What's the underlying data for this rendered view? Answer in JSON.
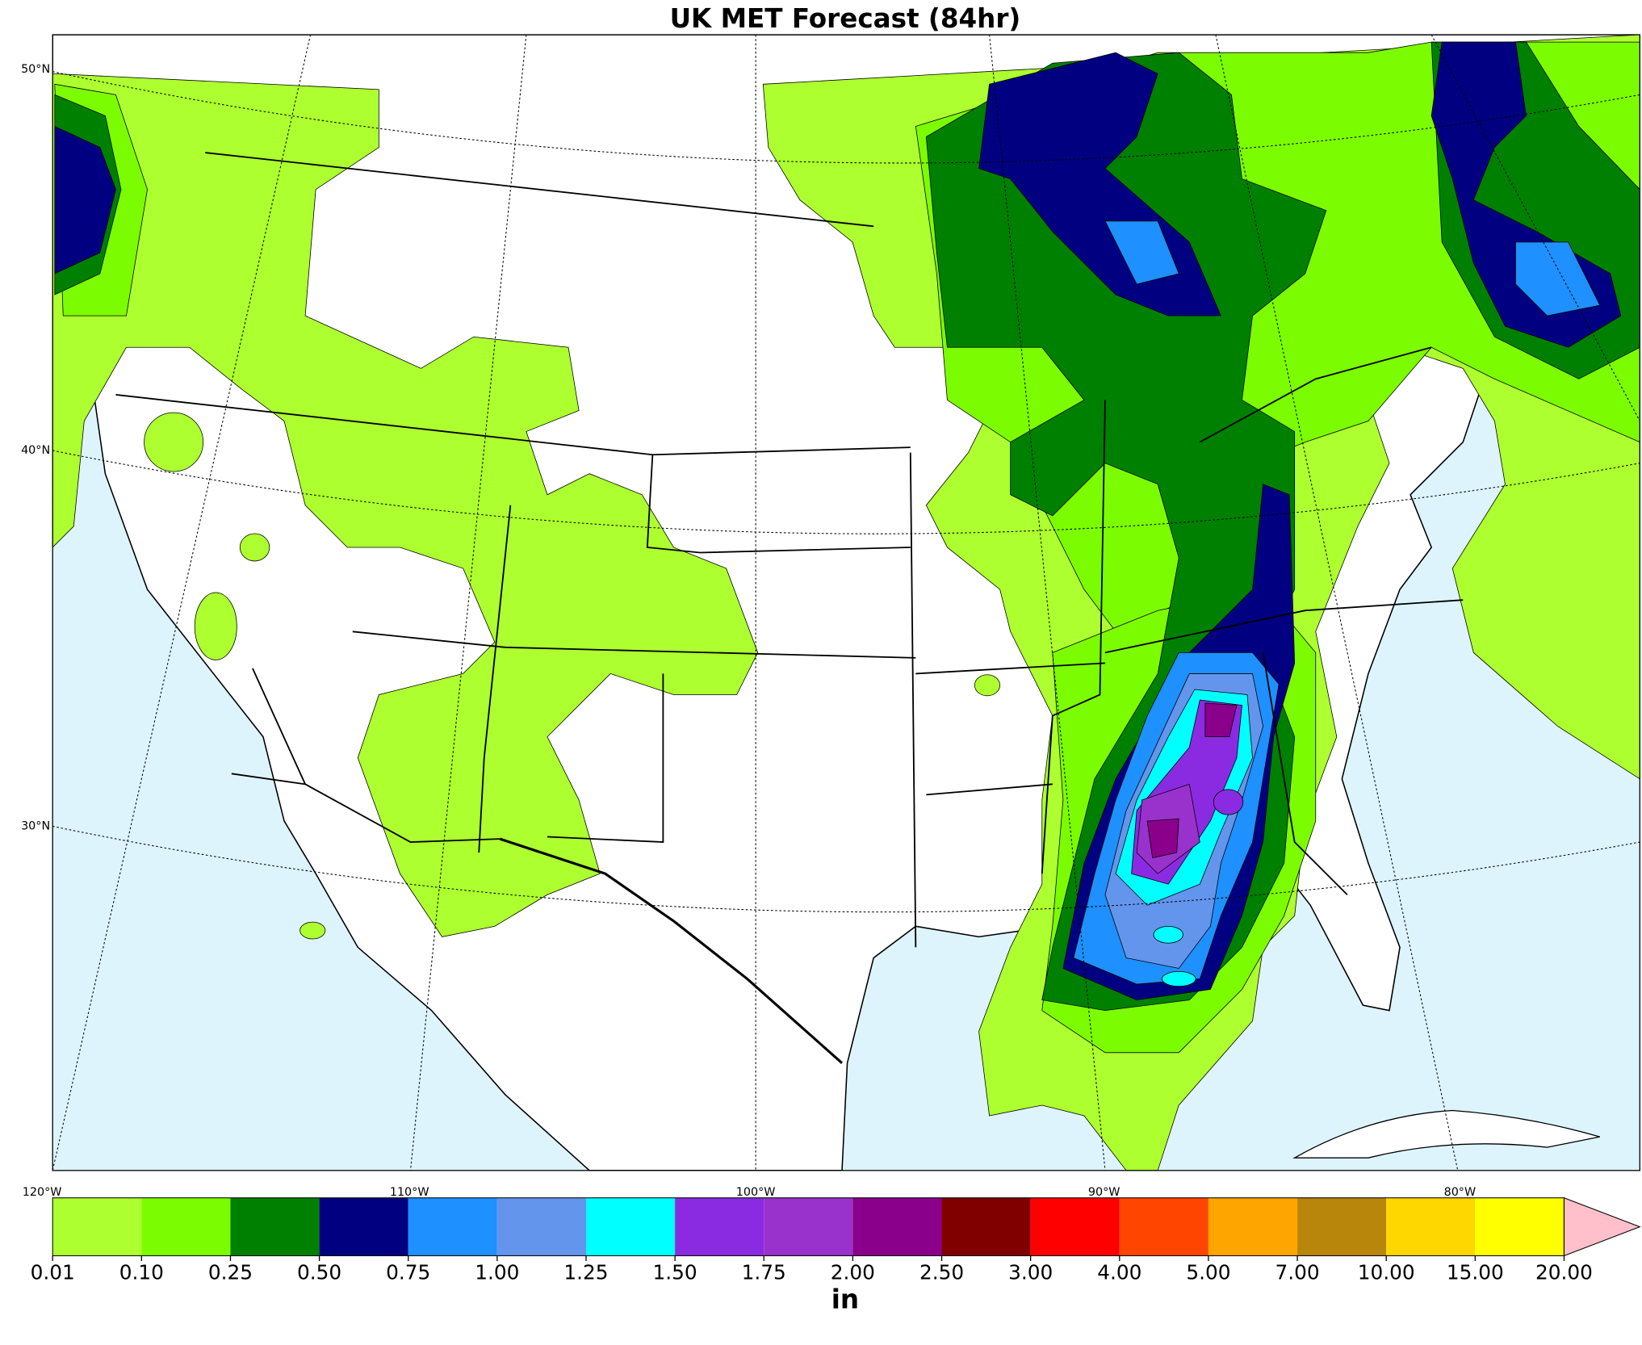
{
  "title": "UK MET Forecast (84hr)",
  "lat_labels": [
    "50°N",
    "40°N",
    "30°N"
  ],
  "lon_labels": [
    "120°W",
    "110°W",
    "100°W",
    "90°W",
    "80°W"
  ],
  "colorbar": {
    "ticks": [
      "0.01",
      "0.10",
      "0.25",
      "0.50",
      "0.75",
      "1.00",
      "1.25",
      "1.50",
      "1.75",
      "2.00",
      "2.50",
      "3.00",
      "4.00",
      "5.00",
      "7.00",
      "10.00",
      "15.00",
      "20.00"
    ],
    "colors": [
      "#adff2f",
      "#7cfc00",
      "#008000",
      "#000080",
      "#1e90ff",
      "#6495ed",
      "#00ffff",
      "#8a2be2",
      "#9932cc",
      "#8b008b",
      "#800000",
      "#ff0000",
      "#ff4500",
      "#ffa500",
      "#b8860b",
      "#ffd700",
      "#ffff00"
    ],
    "extend_color": "#ffc0cb",
    "unit": "in"
  }
}
